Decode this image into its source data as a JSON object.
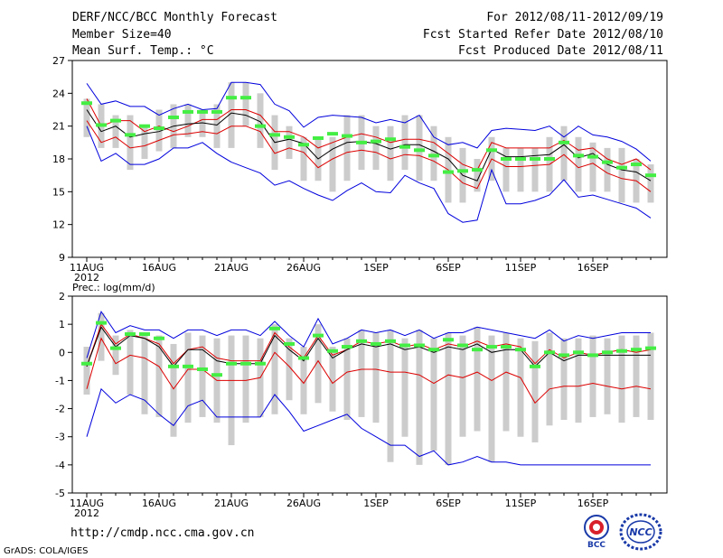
{
  "header": {
    "title": "DERF/NCC/BCC Monthly Forecast",
    "member_size": "Member Size=40",
    "variable": "Mean Surf. Temp.: °C",
    "period": "For 2012/08/11-2012/09/19",
    "refer_date": "Fcst Started Refer Date 2012/08/10",
    "produced_date": "Fcst Produced Date 2012/08/11"
  },
  "footer": {
    "url": "http://cmdp.ncc.cma.gov.cn",
    "credit": "GrADS: COLA/IGES",
    "logo_bcc": "BCC",
    "logo_ncc": "NCC"
  },
  "colors": {
    "bar": "#cccccc",
    "envelope": "#0000dd",
    "spread": "#dd0000",
    "mean": "#000000",
    "highlight": "#44ee44"
  },
  "chart_data": [
    {
      "type": "line",
      "title": "Mean Surf. Temp.: °C",
      "x_tick_labels": [
        "11AUG",
        "16AUG",
        "21AUG",
        "26AUG",
        "1SEP",
        "6SEP",
        "11SEP",
        "16SEP"
      ],
      "year_label": "2012",
      "y_ticks": [
        9,
        12,
        15,
        18,
        21,
        24,
        27
      ],
      "ylim": [
        9,
        27
      ],
      "days": 40,
      "series": [
        {
          "name": "max",
          "values": [
            24.9,
            23,
            23.3,
            22.8,
            22.8,
            22,
            22.6,
            23,
            22.5,
            22.6,
            25,
            25,
            24.8,
            23,
            22.4,
            20.9,
            21.8,
            22,
            21.9,
            21.8,
            21.3,
            21.6,
            21.3,
            22,
            20,
            19.3,
            19.5,
            19,
            20.6,
            20.8,
            20.7,
            20.6,
            21,
            20,
            21,
            20.2,
            20,
            19.6,
            18.9,
            17.8
          ]
        },
        {
          "name": "upper",
          "values": [
            23.5,
            21,
            21.5,
            21.5,
            20.5,
            21,
            20.5,
            21,
            21.6,
            21.6,
            22.5,
            22.5,
            22,
            20.5,
            20.5,
            20,
            19,
            19.5,
            20,
            20.3,
            20,
            19.5,
            19.8,
            19.8,
            19.5,
            18.5,
            17.5,
            17,
            19.5,
            19,
            19,
            19,
            19,
            19.7,
            18.8,
            19,
            18,
            17.5,
            18,
            17
          ]
        },
        {
          "name": "mean",
          "values": [
            22.5,
            20.5,
            21,
            20,
            20.3,
            20.5,
            21,
            21.2,
            21.3,
            21.1,
            22.2,
            22,
            21.4,
            19.5,
            19.8,
            19.4,
            18,
            18.9,
            19.5,
            19.6,
            19.4,
            18.9,
            19.3,
            19.3,
            18.7,
            18,
            16.5,
            16,
            18.9,
            18.2,
            18.2,
            18.3,
            18.4,
            19.3,
            18.1,
            18.5,
            17.5,
            17,
            16.8,
            16
          ]
        },
        {
          "name": "lower",
          "values": [
            21.5,
            19.5,
            20,
            19,
            19.2,
            19.7,
            20.2,
            20.3,
            20.5,
            20.3,
            21,
            21,
            20.5,
            18.5,
            19,
            18.6,
            17.2,
            18,
            18.6,
            18.8,
            18.6,
            18,
            18.4,
            18.3,
            17.8,
            17,
            15.8,
            15.3,
            18,
            17.3,
            17.3,
            17.4,
            17.5,
            18.4,
            17.2,
            17.6,
            16.7,
            16.2,
            16,
            15
          ]
        },
        {
          "name": "min",
          "values": [
            21,
            17.8,
            18.5,
            17.5,
            17.5,
            18,
            19,
            19,
            19.5,
            18.5,
            17.7,
            17.2,
            16.7,
            15.6,
            16,
            15.3,
            14.7,
            14.2,
            15.1,
            15.8,
            15,
            14.9,
            16.5,
            15.8,
            15.3,
            13,
            12.2,
            12.4,
            17,
            13.9,
            13.9,
            14.2,
            14.7,
            16.1,
            14.5,
            14.7,
            14.3,
            13.9,
            13.5,
            12.6
          ]
        },
        {
          "name": "observed",
          "values": [
            23.1,
            21.1,
            21.5,
            20.2,
            21,
            20.8,
            21.8,
            22.3,
            22.3,
            22.3,
            23.6,
            23.6,
            21,
            20.2,
            20,
            19.3,
            19.9,
            20.3,
            20.1,
            19.5,
            19.6,
            19.8,
            19.1,
            18.8,
            18.3,
            16.8,
            16.9,
            17,
            18.8,
            18,
            18,
            18,
            18,
            19.5,
            18.3,
            18.2,
            17.7,
            17.2,
            17.5,
            16.5
          ]
        }
      ],
      "bars": [
        [
          20,
          23.5
        ],
        [
          19,
          23
        ],
        [
          19,
          22
        ],
        [
          17,
          22
        ],
        [
          18,
          21
        ],
        [
          18.7,
          22.5
        ],
        [
          19,
          23
        ],
        [
          20,
          23
        ],
        [
          20,
          22.5
        ],
        [
          19,
          23
        ],
        [
          19,
          25
        ],
        [
          21,
          25
        ],
        [
          19,
          24
        ],
        [
          17,
          22
        ],
        [
          18,
          21
        ],
        [
          16,
          20
        ],
        [
          16,
          20
        ],
        [
          15,
          20
        ],
        [
          16,
          22
        ],
        [
          17,
          22
        ],
        [
          17,
          21
        ],
        [
          16,
          21
        ],
        [
          17,
          22
        ],
        [
          16,
          22
        ],
        [
          16,
          21
        ],
        [
          14,
          20
        ],
        [
          14,
          19
        ],
        [
          15,
          18
        ],
        [
          16,
          20
        ],
        [
          15,
          19
        ],
        [
          15,
          19
        ],
        [
          15,
          19
        ],
        [
          15,
          20
        ],
        [
          16,
          21
        ],
        [
          15,
          20
        ],
        [
          15,
          19.5
        ],
        [
          15,
          19
        ],
        [
          14,
          19
        ],
        [
          14,
          18
        ],
        [
          14,
          17.5
        ]
      ]
    },
    {
      "type": "line",
      "title": "Prec.: log(mm/d)",
      "x_tick_labels": [
        "11AUG",
        "16AUG",
        "21AUG",
        "26AUG",
        "1SEP",
        "6SEP",
        "11SEP",
        "16SEP"
      ],
      "year_label": "2012",
      "y_ticks": [
        -5,
        -4,
        -3,
        -2,
        -1,
        0,
        1,
        2
      ],
      "ylim": [
        -5,
        2
      ],
      "days": 40,
      "series": [
        {
          "name": "max",
          "values": [
            -0.2,
            1.45,
            0.7,
            0.95,
            0.8,
            0.8,
            0.5,
            0.8,
            0.8,
            0.6,
            0.8,
            0.8,
            0.6,
            1.1,
            0.6,
            0.2,
            1.2,
            0.3,
            0.5,
            0.8,
            0.7,
            0.8,
            0.6,
            0.8,
            0.5,
            0.7,
            0.7,
            0.9,
            0.8,
            0.7,
            0.6,
            0.5,
            0.8,
            0.4,
            0.6,
            0.5,
            0.6,
            0.7,
            0.7,
            0.7
          ]
        },
        {
          "name": "upper",
          "values": [
            -0.5,
            1,
            0.3,
            0.65,
            0.5,
            0.3,
            -0.4,
            0.1,
            0.2,
            -0.2,
            -0.3,
            -0.3,
            -0.3,
            0.7,
            0.2,
            -0.2,
            0.6,
            -0.1,
            0.1,
            0.4,
            0.3,
            0.4,
            0.2,
            0.3,
            0.1,
            0.3,
            0.2,
            0.4,
            0.2,
            0.3,
            0.2,
            -0.4,
            0.1,
            -0.2,
            0,
            -0.1,
            0,
            0.1,
            0,
            0.1
          ]
        },
        {
          "name": "mean",
          "values": [
            -0.5,
            0.9,
            0.2,
            0.6,
            0.5,
            0.2,
            -0.5,
            0.1,
            0.1,
            -0.3,
            -0.4,
            -0.4,
            -0.4,
            0.6,
            0.1,
            -0.3,
            0.5,
            -0.2,
            0.1,
            0.3,
            0.2,
            0.3,
            0.1,
            0.2,
            0,
            0.2,
            0.1,
            0.3,
            0,
            0.1,
            0.1,
            -0.5,
            0,
            -0.3,
            -0.1,
            -0.1,
            -0.1,
            -0.1,
            -0.1,
            -0.1
          ]
        },
        {
          "name": "lower",
          "values": [
            -1.3,
            0.5,
            -0.4,
            -0.1,
            -0.2,
            -0.5,
            -1.3,
            -0.6,
            -0.6,
            -1,
            -1,
            -1,
            -0.9,
            0,
            -0.5,
            -1.1,
            -0.3,
            -1.1,
            -0.7,
            -0.6,
            -0.6,
            -0.7,
            -0.7,
            -0.8,
            -1.1,
            -0.8,
            -0.9,
            -0.7,
            -1,
            -0.7,
            -0.9,
            -1.8,
            -1.3,
            -1.2,
            -1.2,
            -1.1,
            -1.2,
            -1.3,
            -1.2,
            -1.3
          ]
        },
        {
          "name": "min",
          "values": [
            -3,
            -1.3,
            -1.8,
            -1.5,
            -1.7,
            -2.2,
            -2.6,
            -1.9,
            -1.7,
            -2.3,
            -2.3,
            -2.3,
            -2.3,
            -1.5,
            -2.1,
            -2.8,
            -2.6,
            -2.4,
            -2.2,
            -2.7,
            -3,
            -3.3,
            -3.3,
            -3.7,
            -3.5,
            -4,
            -3.9,
            -3.7,
            -3.9,
            -3.9,
            -4,
            -4,
            -4,
            -4,
            -4,
            -4,
            -4,
            -4,
            -4,
            -4
          ]
        },
        {
          "name": "observed",
          "values": [
            -0.4,
            1.05,
            0.15,
            0.65,
            0.65,
            0.5,
            -0.5,
            -0.5,
            -0.6,
            -0.8,
            -0.4,
            -0.4,
            -0.4,
            0.85,
            0.3,
            -0.2,
            0.6,
            0.05,
            0.2,
            0.4,
            0.3,
            0.4,
            0.25,
            0.25,
            0.1,
            0.45,
            0.25,
            0.1,
            0.2,
            0.2,
            0.1,
            -0.5,
            0,
            -0.1,
            0,
            -0.1,
            0,
            0.05,
            0.1,
            0.15
          ]
        }
      ],
      "bars": [
        [
          -1.5,
          0.2
        ],
        [
          -0.3,
          1.4
        ],
        [
          -0.8,
          0.6
        ],
        [
          -1.5,
          0.8
        ],
        [
          -2.2,
          0.7
        ],
        [
          -2.3,
          0.6
        ],
        [
          -3,
          0.3
        ],
        [
          -2.5,
          0.7
        ],
        [
          -2.3,
          0.6
        ],
        [
          -2.5,
          0.5
        ],
        [
          -3.3,
          0.6
        ],
        [
          -2.5,
          0.6
        ],
        [
          -2.3,
          0.5
        ],
        [
          -2.2,
          1
        ],
        [
          -1.7,
          0.5
        ],
        [
          -2.2,
          0.2
        ],
        [
          -1.8,
          1
        ],
        [
          -2.1,
          0.2
        ],
        [
          -2.4,
          0.5
        ],
        [
          -2.3,
          0.8
        ],
        [
          -2.5,
          0.7
        ],
        [
          -3.9,
          0.8
        ],
        [
          -3,
          0.5
        ],
        [
          -4,
          0.8
        ],
        [
          -3.5,
          0.5
        ],
        [
          -4,
          0.7
        ],
        [
          -3,
          0.6
        ],
        [
          -2.8,
          0.9
        ],
        [
          -3.9,
          0.6
        ],
        [
          -2.8,
          0.7
        ],
        [
          -3,
          0.5
        ],
        [
          -3.2,
          0.4
        ],
        [
          -2.6,
          0.7
        ],
        [
          -2.4,
          0.5
        ],
        [
          -2.5,
          0.5
        ],
        [
          -2.3,
          0.6
        ],
        [
          -2.2,
          0.5
        ],
        [
          -2.5,
          0.6
        ],
        [
          -2.3,
          0.6
        ],
        [
          -2.4,
          0.7
        ]
      ]
    }
  ]
}
